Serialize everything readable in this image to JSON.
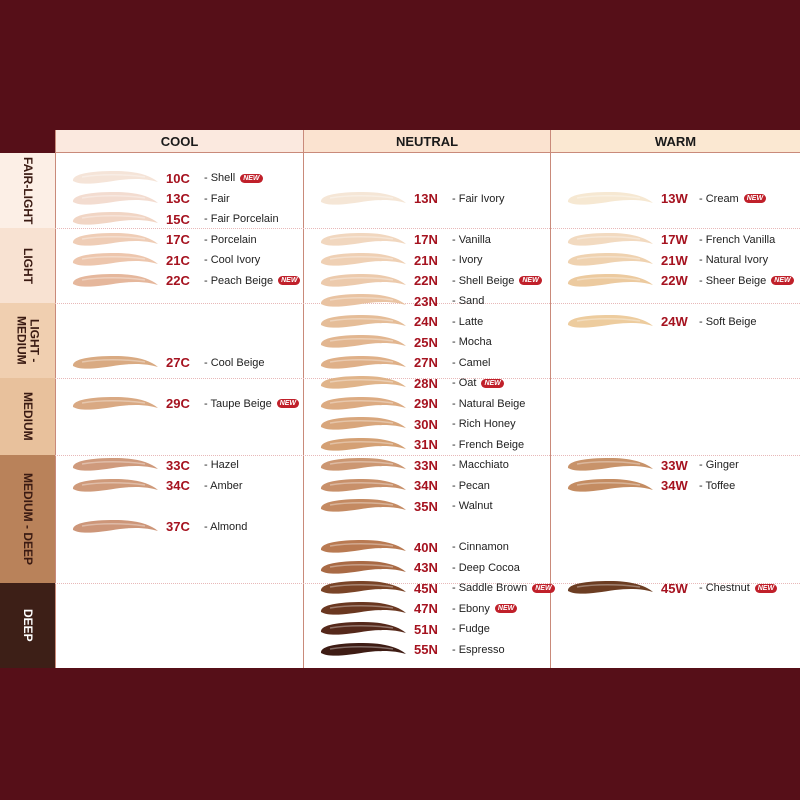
{
  "columns": [
    {
      "label": "COOL",
      "bg": "#fbe9df"
    },
    {
      "label": "NEUTRAL",
      "bg": "#fbe3d0"
    },
    {
      "label": "WARM",
      "bg": "#fbe8d2"
    }
  ],
  "rows": [
    {
      "label": "FAIR-LIGHT",
      "bg": "#fcefe6",
      "color": "#3a1a12"
    },
    {
      "label": "LIGHT",
      "bg": "#f8e2d2",
      "color": "#3a1a12"
    },
    {
      "label": "LIGHT -MEDIUM",
      "bg": "#f0cfb0",
      "color": "#3a1a12"
    },
    {
      "label": "MEDIUM",
      "bg": "#e8c19c",
      "color": "#3a1a12"
    },
    {
      "label": "MEDIUM - DEEP",
      "bg": "#b9825a",
      "color": "#3a1a12"
    },
    {
      "label": "DEEP",
      "bg": "#3d1f17",
      "color": "#ffffff"
    }
  ],
  "new_badge": "NEW",
  "shades": {
    "cool": [
      {
        "code": "10C",
        "name": "- Shell",
        "new": true,
        "color": "#f5e4d8"
      },
      {
        "code": "13C",
        "name": "- Fair",
        "color": "#f3dcd0"
      },
      {
        "code": "15C",
        "name": "- Fair Porcelain",
        "color": "#f1d5c4"
      },
      {
        "code": "17C",
        "name": "- Porcelain",
        "color": "#efcdb6"
      },
      {
        "code": "21C",
        "name": "- Cool Ivory",
        "color": "#edc6ad"
      },
      {
        "code": "22C",
        "name": "- Peach Beige",
        "new": true,
        "color": "#e5b79c"
      },
      {
        "code": "27C",
        "name": "- Cool Beige",
        "color": "#d9aa82"
      },
      {
        "code": "29C",
        "name": "- Taupe Beige",
        "new": true,
        "color": "#d9a983"
      },
      {
        "code": "33C",
        "name": "- Hazel",
        "color": "#cf9a7c"
      },
      {
        "code": "34C",
        "name": "- Amber",
        "color": "#cf9a7a"
      },
      {
        "code": "37C",
        "name": "- Almond",
        "color": "#cd9679"
      }
    ],
    "neutral": [
      {
        "code": "13N",
        "name": "- Fair Ivory",
        "color": "#f5e6d6"
      },
      {
        "code": "17N",
        "name": "- Vanilla",
        "color": "#f1d7bf"
      },
      {
        "code": "21N",
        "name": "- Ivory",
        "color": "#efd0b4"
      },
      {
        "code": "22N",
        "name": "- Shell Beige",
        "new": true,
        "color": "#eccaac"
      },
      {
        "code": "23N",
        "name": "- Sand",
        "color": "#e9c3a2"
      },
      {
        "code": "24N",
        "name": "- Latte",
        "color": "#e5bd98"
      },
      {
        "code": "25N",
        "name": "- Mocha",
        "color": "#e2b690"
      },
      {
        "code": "27N",
        "name": "- Camel",
        "color": "#dfb088"
      },
      {
        "code": "28N",
        "name": "- Oat",
        "new": true,
        "color": "#e0b48a"
      },
      {
        "code": "29N",
        "name": "- Natural Beige",
        "color": "#dcab82"
      },
      {
        "code": "30N",
        "name": "- Rich Honey",
        "color": "#d8a67c"
      },
      {
        "code": "31N",
        "name": "- French Beige",
        "color": "#d4a074"
      },
      {
        "code": "33N",
        "name": "- Macchiato",
        "color": "#cc9772"
      },
      {
        "code": "34N",
        "name": "- Pecan",
        "color": "#c8906a"
      },
      {
        "code": "35N",
        "name": "- Walnut",
        "color": "#c48a62"
      },
      {
        "code": "40N",
        "name": "- Cinnamon",
        "color": "#b97a52"
      },
      {
        "code": "43N",
        "name": "- Deep Cocoa",
        "color": "#a96a45"
      },
      {
        "code": "45N",
        "name": "- Saddle Brown",
        "new": true,
        "color": "#7a4427"
      },
      {
        "code": "47N",
        "name": "- Ebony",
        "new": true,
        "color": "#6a3720"
      },
      {
        "code": "51N",
        "name": "- Fudge",
        "color": "#55281a"
      },
      {
        "code": "55N",
        "name": "- Espresso",
        "color": "#3e1c14"
      }
    ],
    "warm": [
      {
        "code": "13W",
        "name": "- Cream",
        "new": true,
        "color": "#f6e8d2"
      },
      {
        "code": "17W",
        "name": "- French Vanilla",
        "color": "#f2dac0"
      },
      {
        "code": "21W",
        "name": "- Natural Ivory",
        "color": "#efd2b0"
      },
      {
        "code": "22W",
        "name": "- Sheer Beige",
        "new": true,
        "color": "#ecca9f"
      },
      {
        "code": "24W",
        "name": "- Soft Beige",
        "color": "#edcc9e"
      },
      {
        "code": "33W",
        "name": "- Ginger",
        "color": "#c8936a"
      },
      {
        "code": "34W",
        "name": "- Toffee",
        "color": "#c48c62"
      },
      {
        "code": "45W",
        "name": "- Chestnut",
        "new": true,
        "color": "#6c3d22"
      }
    ]
  }
}
